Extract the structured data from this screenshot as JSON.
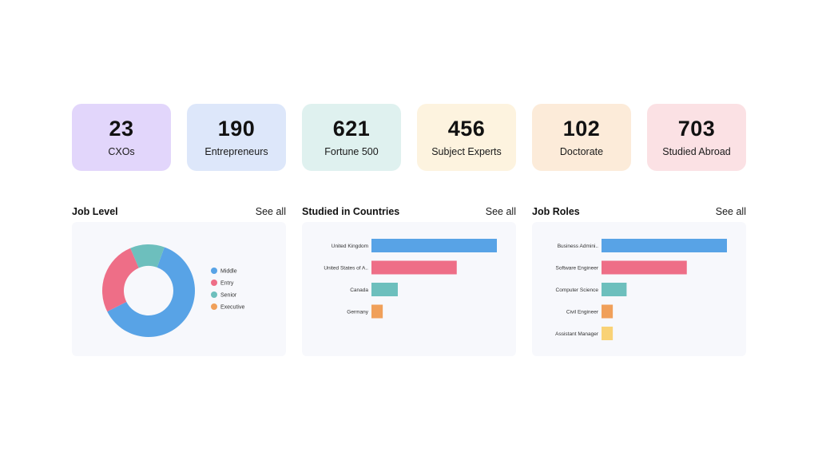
{
  "stats": [
    {
      "value": "23",
      "label": "CXOs",
      "color": "#e2d6fb"
    },
    {
      "value": "190",
      "label": "Entrepreneurs",
      "color": "#dde7fa"
    },
    {
      "value": "621",
      "label": "Fortune 500",
      "color": "#dff1ef"
    },
    {
      "value": "456",
      "label": "Subject Experts",
      "color": "#fdf3df"
    },
    {
      "value": "102",
      "label": "Doctorate",
      "color": "#fcebd9"
    },
    {
      "value": "703",
      "label": "Studied Abroad",
      "color": "#fbe1e4"
    }
  ],
  "panels": {
    "job_level": {
      "title": "Job Level",
      "see_all": "See all"
    },
    "countries": {
      "title": "Studied in Countries",
      "see_all": "See all"
    },
    "roles": {
      "title": "Job Roles",
      "see_all": "See all"
    }
  },
  "chart_data": [
    {
      "type": "pie",
      "donut": true,
      "labels": [
        "Middle",
        "Entry",
        "Senior",
        "Executive"
      ],
      "values": [
        62,
        26,
        12,
        0
      ],
      "colors": [
        "#58a3e6",
        "#ee6e87",
        "#6dbfbd",
        "#f0a05a"
      ],
      "legend": "right"
    },
    {
      "type": "bar",
      "orientation": "horizontal",
      "categories": [
        "United Kingdom",
        "United States of A..",
        "Canada",
        "Germany"
      ],
      "values": [
        100,
        68,
        21,
        9
      ],
      "colors": [
        "#58a3e6",
        "#ee6e87",
        "#6dbfbd",
        "#f0a05a"
      ],
      "xlim": [
        0,
        100
      ]
    },
    {
      "type": "bar",
      "orientation": "horizontal",
      "categories": [
        "Business Admini..",
        "Software Engineer",
        "Computer Science",
        "Civil Engineer",
        "Assistant Manager"
      ],
      "values": [
        100,
        68,
        20,
        9,
        9
      ],
      "colors": [
        "#58a3e6",
        "#ee6e87",
        "#6dbfbd",
        "#f0a05a",
        "#f9d276"
      ],
      "xlim": [
        0,
        100
      ]
    }
  ]
}
